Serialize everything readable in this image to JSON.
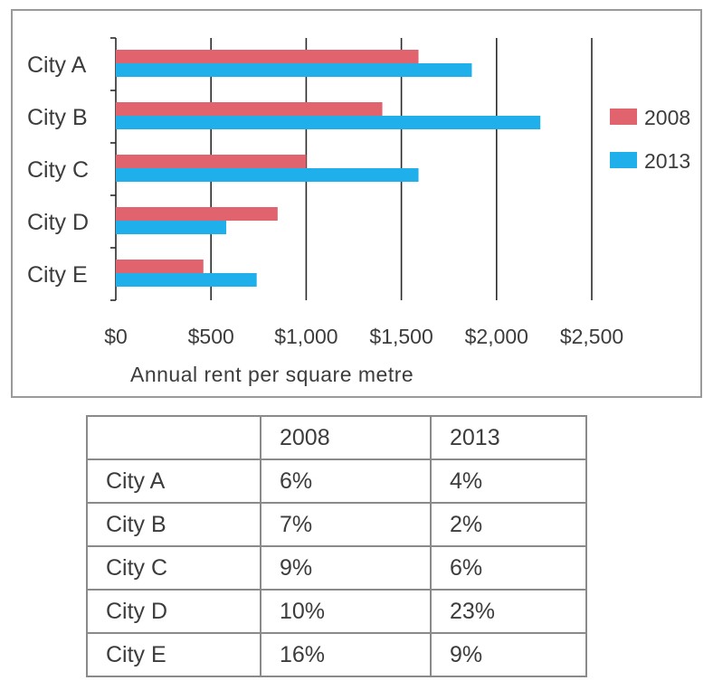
{
  "chart_data": {
    "type": "bar",
    "orientation": "horizontal",
    "categories": [
      "City A",
      "City B",
      "City C",
      "City D",
      "City E"
    ],
    "series": [
      {
        "name": "2008",
        "color": "#e0636e",
        "values": [
          1590,
          1400,
          1000,
          850,
          460
        ]
      },
      {
        "name": "2013",
        "color": "#1fb0ec",
        "values": [
          1870,
          2230,
          1590,
          580,
          740
        ]
      }
    ],
    "xlabel": "Annual rent per square metre",
    "xlim": [
      0,
      2500
    ],
    "xticks": [
      0,
      500,
      1000,
      1500,
      2000,
      2500
    ],
    "xtick_labels": [
      "$0",
      "$500",
      "$1,000",
      "$1,500",
      "$2,000",
      "$2,500"
    ],
    "grid": "vertical",
    "legend": "right"
  },
  "table": {
    "headers": [
      "",
      "2008",
      "2013"
    ],
    "rows": [
      [
        "City A",
        "6%",
        "4%"
      ],
      [
        "City B",
        "7%",
        "2%"
      ],
      [
        "City C",
        "9%",
        "6%"
      ],
      [
        "City D",
        "10%",
        "23%"
      ],
      [
        "City E",
        "16%",
        "9%"
      ]
    ]
  }
}
